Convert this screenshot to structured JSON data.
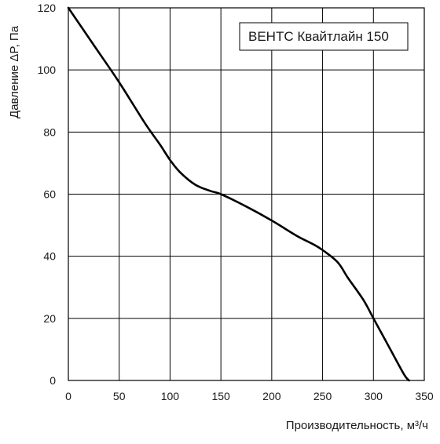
{
  "chart_data": {
    "type": "line",
    "title": "",
    "xlabel": "Производительность, м³/ч",
    "ylabel": "Давление ΔP, Па",
    "xlim": [
      0,
      350
    ],
    "ylim": [
      0,
      120
    ],
    "x_ticks": [
      0,
      50,
      100,
      150,
      200,
      250,
      300,
      350
    ],
    "y_ticks": [
      0,
      20,
      40,
      60,
      80,
      100,
      120
    ],
    "x_tick_labels": [
      "0",
      "50",
      "100",
      "150",
      "200",
      "250",
      "300",
      "350"
    ],
    "y_tick_labels": [
      "0",
      "20",
      "40",
      "60",
      "80",
      "100",
      "120"
    ],
    "grid": true,
    "legend_position": "top-right",
    "series": [
      {
        "name": "ВЕНТС Квайтлайн 150",
        "color": "#000000",
        "x": [
          0,
          25,
          50,
          75,
          90,
          100,
          110,
          125,
          140,
          150,
          175,
          200,
          225,
          240,
          250,
          265,
          275,
          290,
          300,
          315,
          330,
          335
        ],
        "y": [
          120,
          108,
          96,
          83,
          76,
          71,
          67,
          63,
          61,
          60,
          56,
          51.5,
          46.5,
          44,
          42,
          38,
          33,
          26,
          20,
          11,
          2,
          0
        ]
      }
    ]
  }
}
